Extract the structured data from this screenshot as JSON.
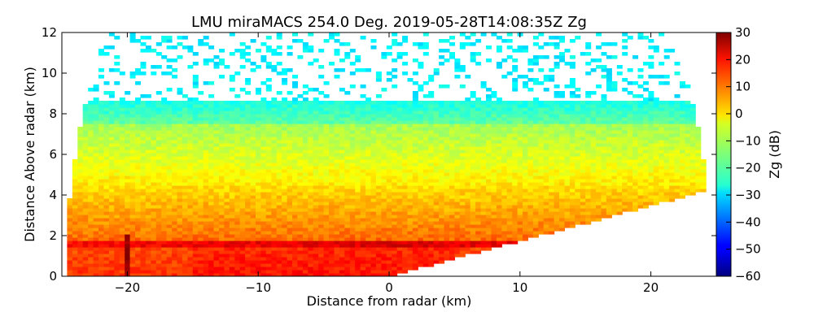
{
  "chart_data": {
    "type": "heatmap",
    "title": "LMU miraMACS 254.0 Deg. 2019-05-28T14:08:35Z  Zg",
    "xlabel": "Distance from radar (km)",
    "ylabel": "Distance Above radar  (km)",
    "xlim": [
      -25,
      25
    ],
    "ylim": [
      0,
      12
    ],
    "xticks": [
      -20,
      -10,
      0,
      10,
      20
    ],
    "xtick_labels": [
      "−20",
      "−10",
      "0",
      "10",
      "20"
    ],
    "yticks": [
      0,
      2,
      4,
      6,
      8,
      10,
      12
    ],
    "ytick_labels": [
      "0",
      "2",
      "4",
      "6",
      "8",
      "10",
      "12"
    ],
    "grid": false,
    "scan": {
      "type": "RHI",
      "azimuth_deg": 254.0,
      "left_edge_x_km": -24.4,
      "right_edge_x_km": 23.9,
      "right_edge_top_y_km": 4.15
    },
    "layers": [
      {
        "feature": "background echo",
        "y_range_km": [
          0.3,
          7.5
        ],
        "zg_dbz_approx": -5
      },
      {
        "feature": "strong layer near bright band",
        "y_range_km": [
          0.3,
          1.7
        ],
        "zg_dbz_approx": 15
      },
      {
        "feature": "peak band",
        "y_range_km": [
          1.4,
          1.65
        ],
        "zg_dbz_approx": 25
      },
      {
        "feature": "cloud top",
        "y_range_km": [
          7.5,
          8.7
        ],
        "zg_dbz_approx": -22
      },
      {
        "feature": "sparse noise",
        "y_range_km": [
          8.7,
          12
        ],
        "zg_dbz_approx": -27
      },
      {
        "feature": "vertical streak",
        "x_range_km": [
          -20.3,
          -19.7
        ],
        "y_range_km": [
          0.3,
          2.0
        ],
        "zg_dbz_approx": 28
      }
    ],
    "colorbar": {
      "label": "Zg (dB)",
      "colormap": "jet",
      "min": -60,
      "max": 30,
      "ticks": [
        30,
        20,
        10,
        0,
        -10,
        -20,
        -30,
        -40,
        -50,
        -60
      ],
      "tick_labels": [
        "30",
        "20",
        "10",
        "0",
        "−10",
        "−20",
        "−30",
        "−40",
        "−50",
        "−60"
      ]
    }
  }
}
